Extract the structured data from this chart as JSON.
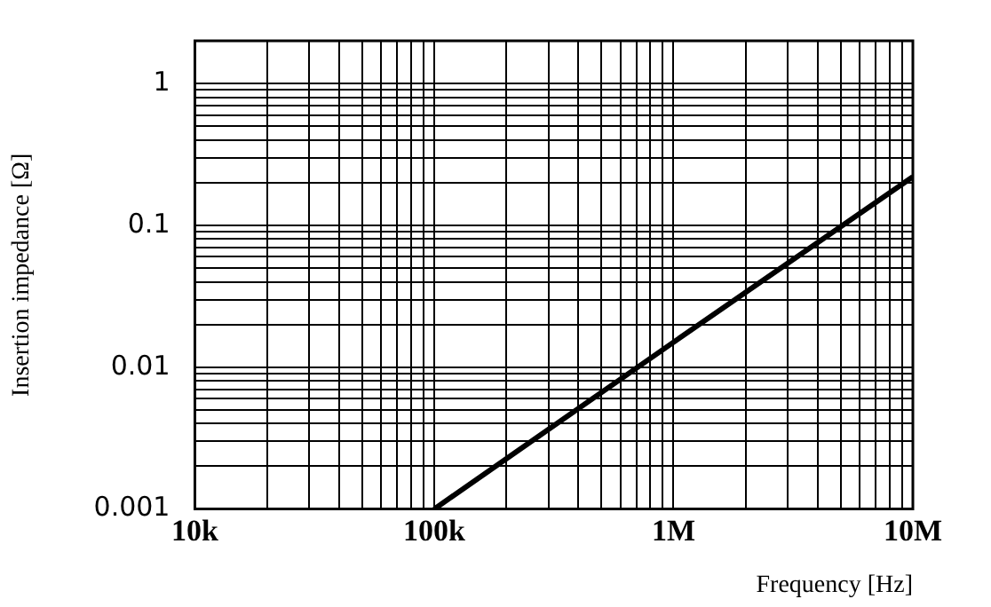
{
  "chart_data": {
    "type": "line",
    "xlabel": "Frequency [Hz]",
    "ylabel": "Insertion impedance [Ω]",
    "x": [
      100000,
      1000000,
      10000000
    ],
    "series": [
      {
        "color": "#000000",
        "values": [
          0.001,
          0.015,
          0.22
        ]
      }
    ],
    "log": "xy",
    "xlim": [
      10000,
      10000000
    ],
    "ylim": [
      0.001,
      2
    ],
    "xticks": [
      {
        "value": 10000,
        "label": "10k"
      },
      {
        "value": 20000,
        "label": null
      },
      {
        "value": 30000,
        "label": null
      },
      {
        "value": 40000,
        "label": null
      },
      {
        "value": 50000,
        "label": null
      },
      {
        "value": 60000,
        "label": null
      },
      {
        "value": 70000,
        "label": null
      },
      {
        "value": 80000,
        "label": null
      },
      {
        "value": 90000,
        "label": null
      },
      {
        "value": 100000,
        "label": "100k"
      },
      {
        "value": 200000,
        "label": null
      },
      {
        "value": 300000,
        "label": null
      },
      {
        "value": 400000,
        "label": null
      },
      {
        "value": 500000,
        "label": null
      },
      {
        "value": 600000,
        "label": null
      },
      {
        "value": 700000,
        "label": null
      },
      {
        "value": 800000,
        "label": null
      },
      {
        "value": 900000,
        "label": null
      },
      {
        "value": 1000000,
        "label": "1M"
      },
      {
        "value": 2000000,
        "label": null
      },
      {
        "value": 3000000,
        "label": null
      },
      {
        "value": 4000000,
        "label": null
      },
      {
        "value": 5000000,
        "label": null
      },
      {
        "value": 6000000,
        "label": null
      },
      {
        "value": 7000000,
        "label": null
      },
      {
        "value": 8000000,
        "label": null
      },
      {
        "value": 9000000,
        "label": null
      },
      {
        "value": 10000000,
        "label": "10M"
      }
    ],
    "yticks": [
      0.001,
      {
        "value": 0.002,
        "label": null
      },
      {
        "value": 0.003,
        "label": null
      },
      {
        "value": 0.004,
        "label": null
      },
      {
        "value": 0.005,
        "label": null
      },
      {
        "value": 0.006,
        "label": null
      },
      {
        "value": 0.007,
        "label": null
      },
      {
        "value": 0.008,
        "label": null
      },
      {
        "value": 0.009,
        "label": null
      },
      0.01,
      {
        "value": 0.02,
        "label": null
      },
      {
        "value": 0.03,
        "label": null
      },
      {
        "value": 0.04,
        "label": null
      },
      {
        "value": 0.05,
        "label": null
      },
      {
        "value": 0.06,
        "label": null
      },
      {
        "value": 0.07,
        "label": null
      },
      {
        "value": 0.08,
        "label": null
      },
      {
        "value": 0.09,
        "label": null
      },
      0.1,
      {
        "value": 0.2,
        "label": null
      },
      {
        "value": 0.3,
        "label": null
      },
      {
        "value": 0.4,
        "label": null
      },
      {
        "value": 0.5,
        "label": null
      },
      {
        "value": 0.6,
        "label": null
      },
      {
        "value": 0.7,
        "label": null
      },
      {
        "value": 0.8,
        "label": null
      },
      {
        "value": 0.9,
        "label": null
      },
      1,
      {
        "value": 2,
        "label": null
      }
    ],
    "grid": true,
    "legend": false,
    "marker": "none",
    "line_style": "solid"
  }
}
